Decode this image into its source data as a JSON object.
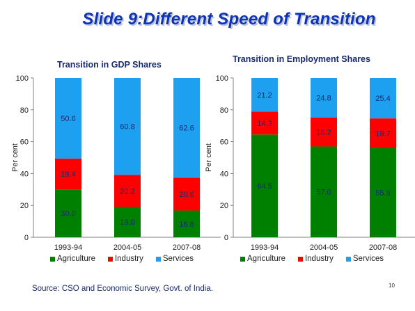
{
  "slide": {
    "title": "Slide 9:Different Speed of Transition",
    "source": "Source: CSO and Economic Survey, Govt. of India.",
    "page_number": "10"
  },
  "colors": {
    "agriculture": "#008000",
    "industry": "#ff0000",
    "services": "#1ea0f0",
    "title": "#1032b4"
  },
  "chart_data": [
    {
      "type": "bar",
      "stacked": true,
      "title": "Transition in GDP Shares",
      "ylabel": "Per cent",
      "xlabel": "",
      "ylim": [
        0,
        100
      ],
      "yticks": [
        0,
        20,
        40,
        60,
        80,
        100
      ],
      "categories": [
        "1993-94",
        "2004-05",
        "2007-08"
      ],
      "series": [
        {
          "name": "Agriculture",
          "color": "#008000",
          "values": [
            30.0,
            19.0,
            16.8
          ],
          "labels": [
            "30.0",
            "19.0",
            "16.8"
          ]
        },
        {
          "name": "Industry",
          "color": "#ff0000",
          "values": [
            19.4,
            20.2,
            20.6
          ],
          "labels": [
            "19.4",
            "20.2",
            "20.6"
          ]
        },
        {
          "name": "Services",
          "color": "#1ea0f0",
          "values": [
            50.6,
            60.8,
            62.6
          ],
          "labels": [
            "50.6",
            "60.8",
            "62.6"
          ]
        }
      ],
      "legend": "bottom",
      "grid": false
    },
    {
      "type": "bar",
      "stacked": true,
      "title": "Transition in Employment Shares",
      "ylabel": "Per cent",
      "xlabel": "",
      "ylim": [
        0,
        100
      ],
      "yticks": [
        0,
        20,
        40,
        60,
        80,
        100
      ],
      "categories": [
        "1993-94",
        "2004-05",
        "2007-08"
      ],
      "series": [
        {
          "name": "Agriculture",
          "color": "#008000",
          "values": [
            64.5,
            57.0,
            55.9
          ],
          "labels": [
            "64.5",
            "57.0",
            "55.9"
          ]
        },
        {
          "name": "Industry",
          "color": "#ff0000",
          "values": [
            14.3,
            18.2,
            18.7
          ],
          "labels": [
            "14.3",
            "18.2",
            "18.7"
          ]
        },
        {
          "name": "Services",
          "color": "#1ea0f0",
          "values": [
            21.2,
            24.8,
            25.4
          ],
          "labels": [
            "21.2",
            "24.8",
            "25.4"
          ]
        }
      ],
      "legend": "bottom",
      "grid": false
    }
  ]
}
